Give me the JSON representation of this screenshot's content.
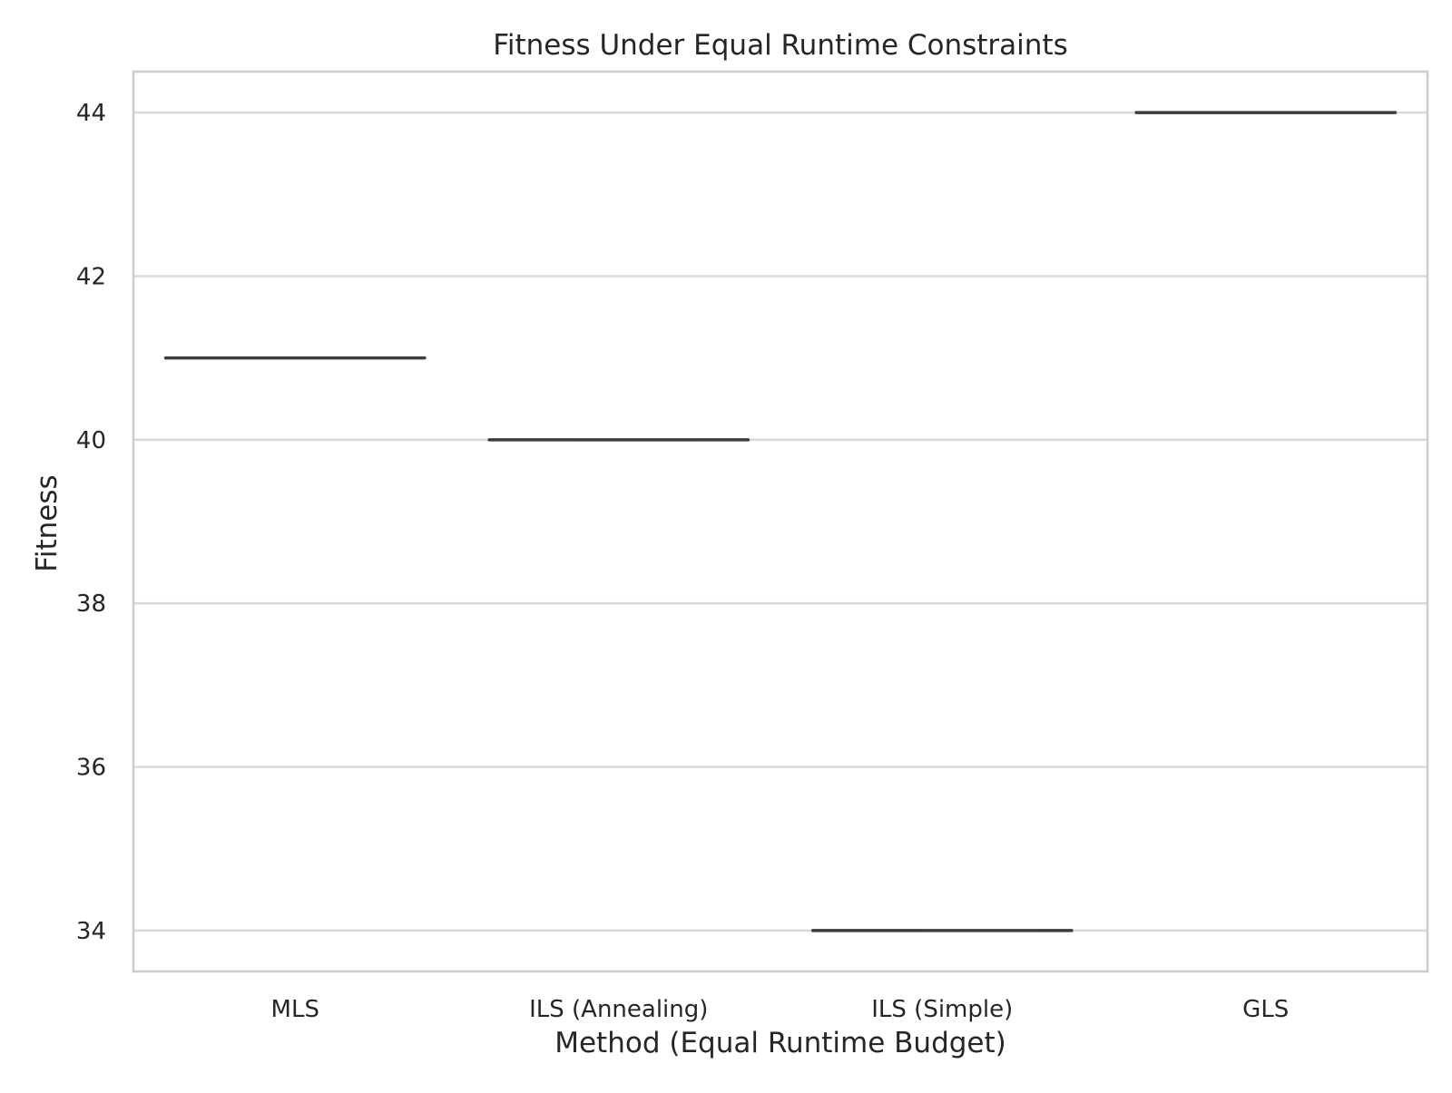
{
  "chart_data": {
    "type": "box",
    "title": "Fitness Under Equal Runtime Constraints",
    "xlabel": "Method (Equal Runtime Budget)",
    "ylabel": "Fitness",
    "categories": [
      "MLS",
      "ILS (Annealing)",
      "ILS (Simple)",
      "GLS"
    ],
    "values": [
      41,
      40,
      34,
      44
    ],
    "ylim": [
      33.5,
      44.5
    ],
    "yticks": [
      34,
      36,
      38,
      40,
      42,
      44
    ],
    "grid": "horizontal",
    "colors": {
      "box_line": "#3d3d3d",
      "grid": "#d9d9d9",
      "frame": "#cccccc",
      "text": "#262626"
    }
  }
}
